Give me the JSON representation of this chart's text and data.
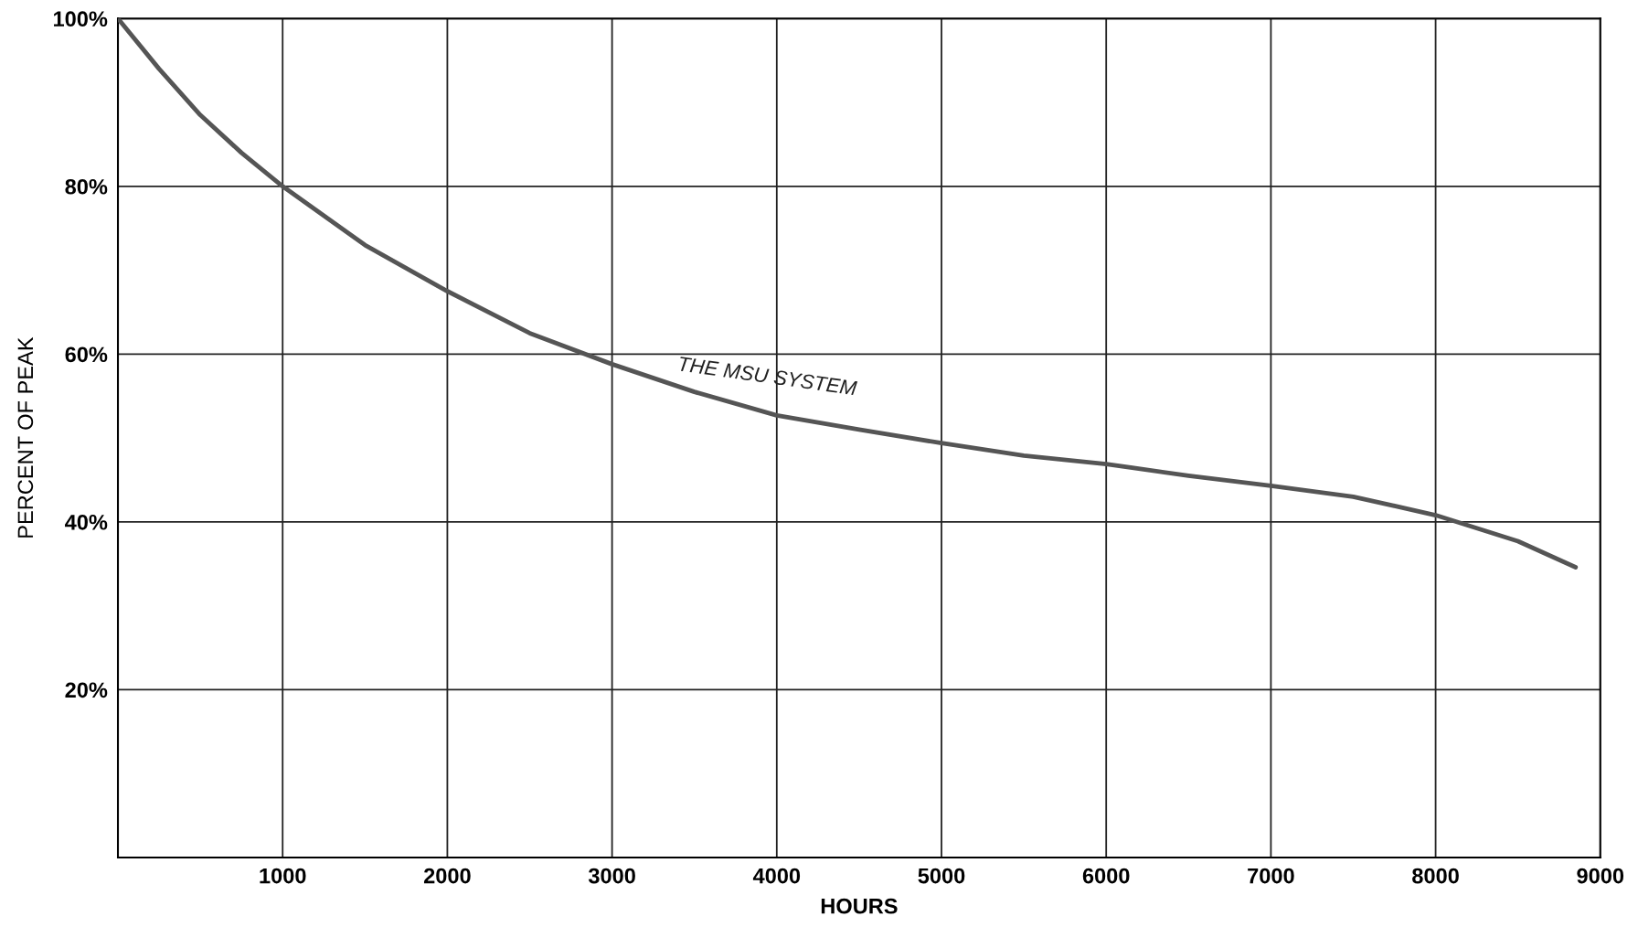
{
  "chart_data": {
    "type": "line",
    "xlabel": "HOURS",
    "ylabel": "PERCENT OF PEAK",
    "x": [
      0,
      250,
      500,
      750,
      1000,
      1500,
      2000,
      2500,
      3000,
      3500,
      4000,
      4500,
      5000,
      5500,
      6000,
      6500,
      7000,
      7500,
      8000,
      8500,
      8850
    ],
    "series": [
      {
        "name": "THE MSU SYSTEM",
        "color": "#555555",
        "values": [
          100,
          94,
          88.5,
          84,
          80,
          73,
          67.5,
          62.5,
          58.8,
          55.5,
          52.7,
          51,
          49.4,
          47.9,
          46.9,
          45.5,
          44.3,
          43,
          40.8,
          37.7,
          34.6
        ]
      }
    ],
    "xlim": [
      0,
      9000
    ],
    "xticks": [
      1000,
      2000,
      3000,
      4000,
      5000,
      6000,
      7000,
      8000,
      9000
    ],
    "ylim": [
      0,
      100
    ],
    "yticks": [
      {
        "value": 20,
        "label": "20%"
      },
      {
        "value": 40,
        "label": "40%"
      },
      {
        "value": 60,
        "label": "60%"
      },
      {
        "value": 80,
        "label": "80%"
      },
      {
        "value": 100,
        "label": "100%"
      }
    ],
    "grid": true,
    "legend": false,
    "line_style": "solid",
    "marker": "none"
  }
}
